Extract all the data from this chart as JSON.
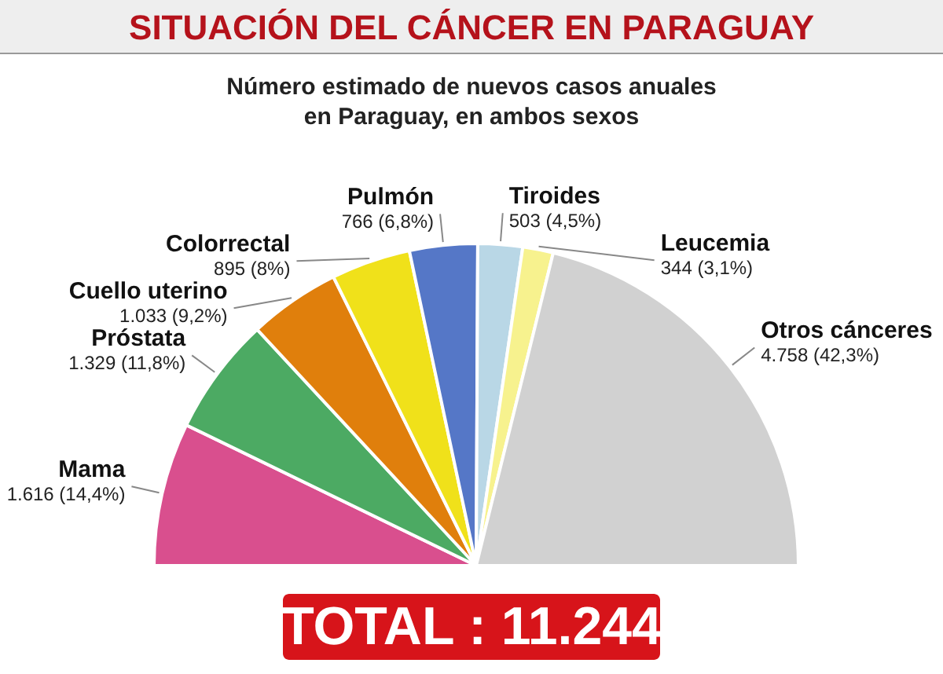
{
  "chart_data": {
    "type": "pie",
    "title": "SITUACIÓN DEL CÁNCER EN PARAGUAY",
    "subtitle": "Número estimado de nuevos casos anuales\nen Paraguay, en ambos sexos",
    "categories": [
      "Mama",
      "Próstata",
      "Cuello uterino",
      "Colorrectal",
      "Pulmón",
      "Tiroides",
      "Leucemia",
      "Otros cánceres"
    ],
    "values": [
      1616,
      1329,
      1033,
      895,
      766,
      503,
      344,
      4758
    ],
    "colors": [
      "#d94f8e",
      "#4caa63",
      "#e07f0c",
      "#f0e11a",
      "#5577c7",
      "#b9d7e6",
      "#f7f28e",
      "#d1d1d1"
    ],
    "value_labels": [
      "1.616 (14,4%)",
      "1.329 (11,8%)",
      "1.033 (9,2%)",
      "895 (8%)",
      "766 (6,8%)",
      "503 (4,5%)",
      "344 (3,1%)",
      "4.758 (42,3%)"
    ],
    "annotations": [
      "TOTAL : 11.244"
    ]
  }
}
